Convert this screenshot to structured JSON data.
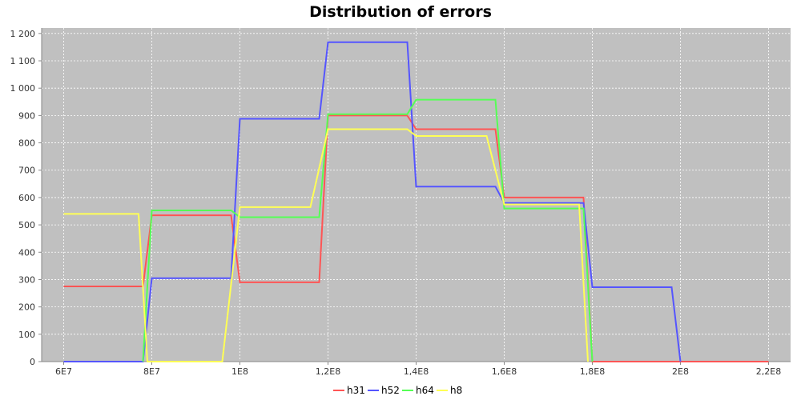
{
  "chart_data": {
    "type": "line",
    "title": "Distribution of errors",
    "xlabel": "",
    "ylabel": "",
    "xlim": [
      55000000.0,
      225000000.0
    ],
    "ylim": [
      0,
      1220
    ],
    "x_ticks": [
      {
        "value": 60000000.0,
        "label": "6E7"
      },
      {
        "value": 80000000.0,
        "label": "8E7"
      },
      {
        "value": 100000000.0,
        "label": "1E8"
      },
      {
        "value": 120000000.0,
        "label": "1,2E8"
      },
      {
        "value": 140000000.0,
        "label": "1,4E8"
      },
      {
        "value": 160000000.0,
        "label": "1,6E8"
      },
      {
        "value": 180000000.0,
        "label": "1,8E8"
      },
      {
        "value": 200000000.0,
        "label": "2E8"
      },
      {
        "value": 220000000.0,
        "label": "2,2E8"
      }
    ],
    "y_ticks": [
      {
        "value": 0,
        "label": "0"
      },
      {
        "value": 100,
        "label": "100"
      },
      {
        "value": 200,
        "label": "200"
      },
      {
        "value": 300,
        "label": "300"
      },
      {
        "value": 400,
        "label": "400"
      },
      {
        "value": 500,
        "label": "500"
      },
      {
        "value": 600,
        "label": "600"
      },
      {
        "value": 700,
        "label": "700"
      },
      {
        "value": 800,
        "label": "800"
      },
      {
        "value": 900,
        "label": "900"
      },
      {
        "value": 1000,
        "label": "1 000"
      },
      {
        "value": 1100,
        "label": "1 100"
      },
      {
        "value": 1200,
        "label": "1 200"
      }
    ],
    "grid": true,
    "legend_position": "bottom",
    "series": [
      {
        "name": "h31",
        "color": "#ff5555",
        "x": [
          60000000.0,
          78000000.0,
          80000000.0,
          98000000.0,
          100000000.0,
          118000000.0,
          120000000.0,
          138000000.0,
          140000000.0,
          158000000.0,
          160000000.0,
          178000000.0,
          180000000.0,
          220000000.0
        ],
        "y": [
          275,
          275,
          535,
          535,
          290,
          290,
          900,
          900,
          850,
          850,
          600,
          600,
          0,
          0
        ]
      },
      {
        "name": "h52",
        "color": "#5555ff",
        "x": [
          60000000.0,
          78000000.0,
          80000000.0,
          98000000.0,
          100000000.0,
          118000000.0,
          120000000.0,
          138000000.0,
          140000000.0,
          158000000.0,
          160000000.0,
          178000000.0,
          180000000.0,
          198000000.0,
          200000000.0
        ],
        "y": [
          0,
          0,
          305,
          305,
          888,
          888,
          1168,
          1168,
          640,
          640,
          580,
          580,
          272,
          272,
          0
        ]
      },
      {
        "name": "h64",
        "color": "#55ff55",
        "x": [
          78000000.0,
          80000000.0,
          98000000.0,
          100000000.0,
          118000000.0,
          120000000.0,
          138000000.0,
          140000000.0,
          158000000.0,
          160000000.0,
          178000000.0,
          180000000.0
        ],
        "y": [
          0,
          553,
          553,
          528,
          528,
          905,
          905,
          958,
          958,
          560,
          560,
          0
        ]
      },
      {
        "name": "h8",
        "color": "#ffff55",
        "x": [
          60000000.0,
          77000000.0,
          79000000.0,
          96000000.0,
          100000000.0,
          116000000.0,
          120000000.0,
          138000000.0,
          140000000.0,
          156000000.0,
          160000000.0,
          177000000.0,
          179000000.0
        ],
        "y": [
          540,
          540,
          0,
          0,
          565,
          565,
          850,
          850,
          825,
          825,
          575,
          575,
          0
        ]
      }
    ]
  }
}
